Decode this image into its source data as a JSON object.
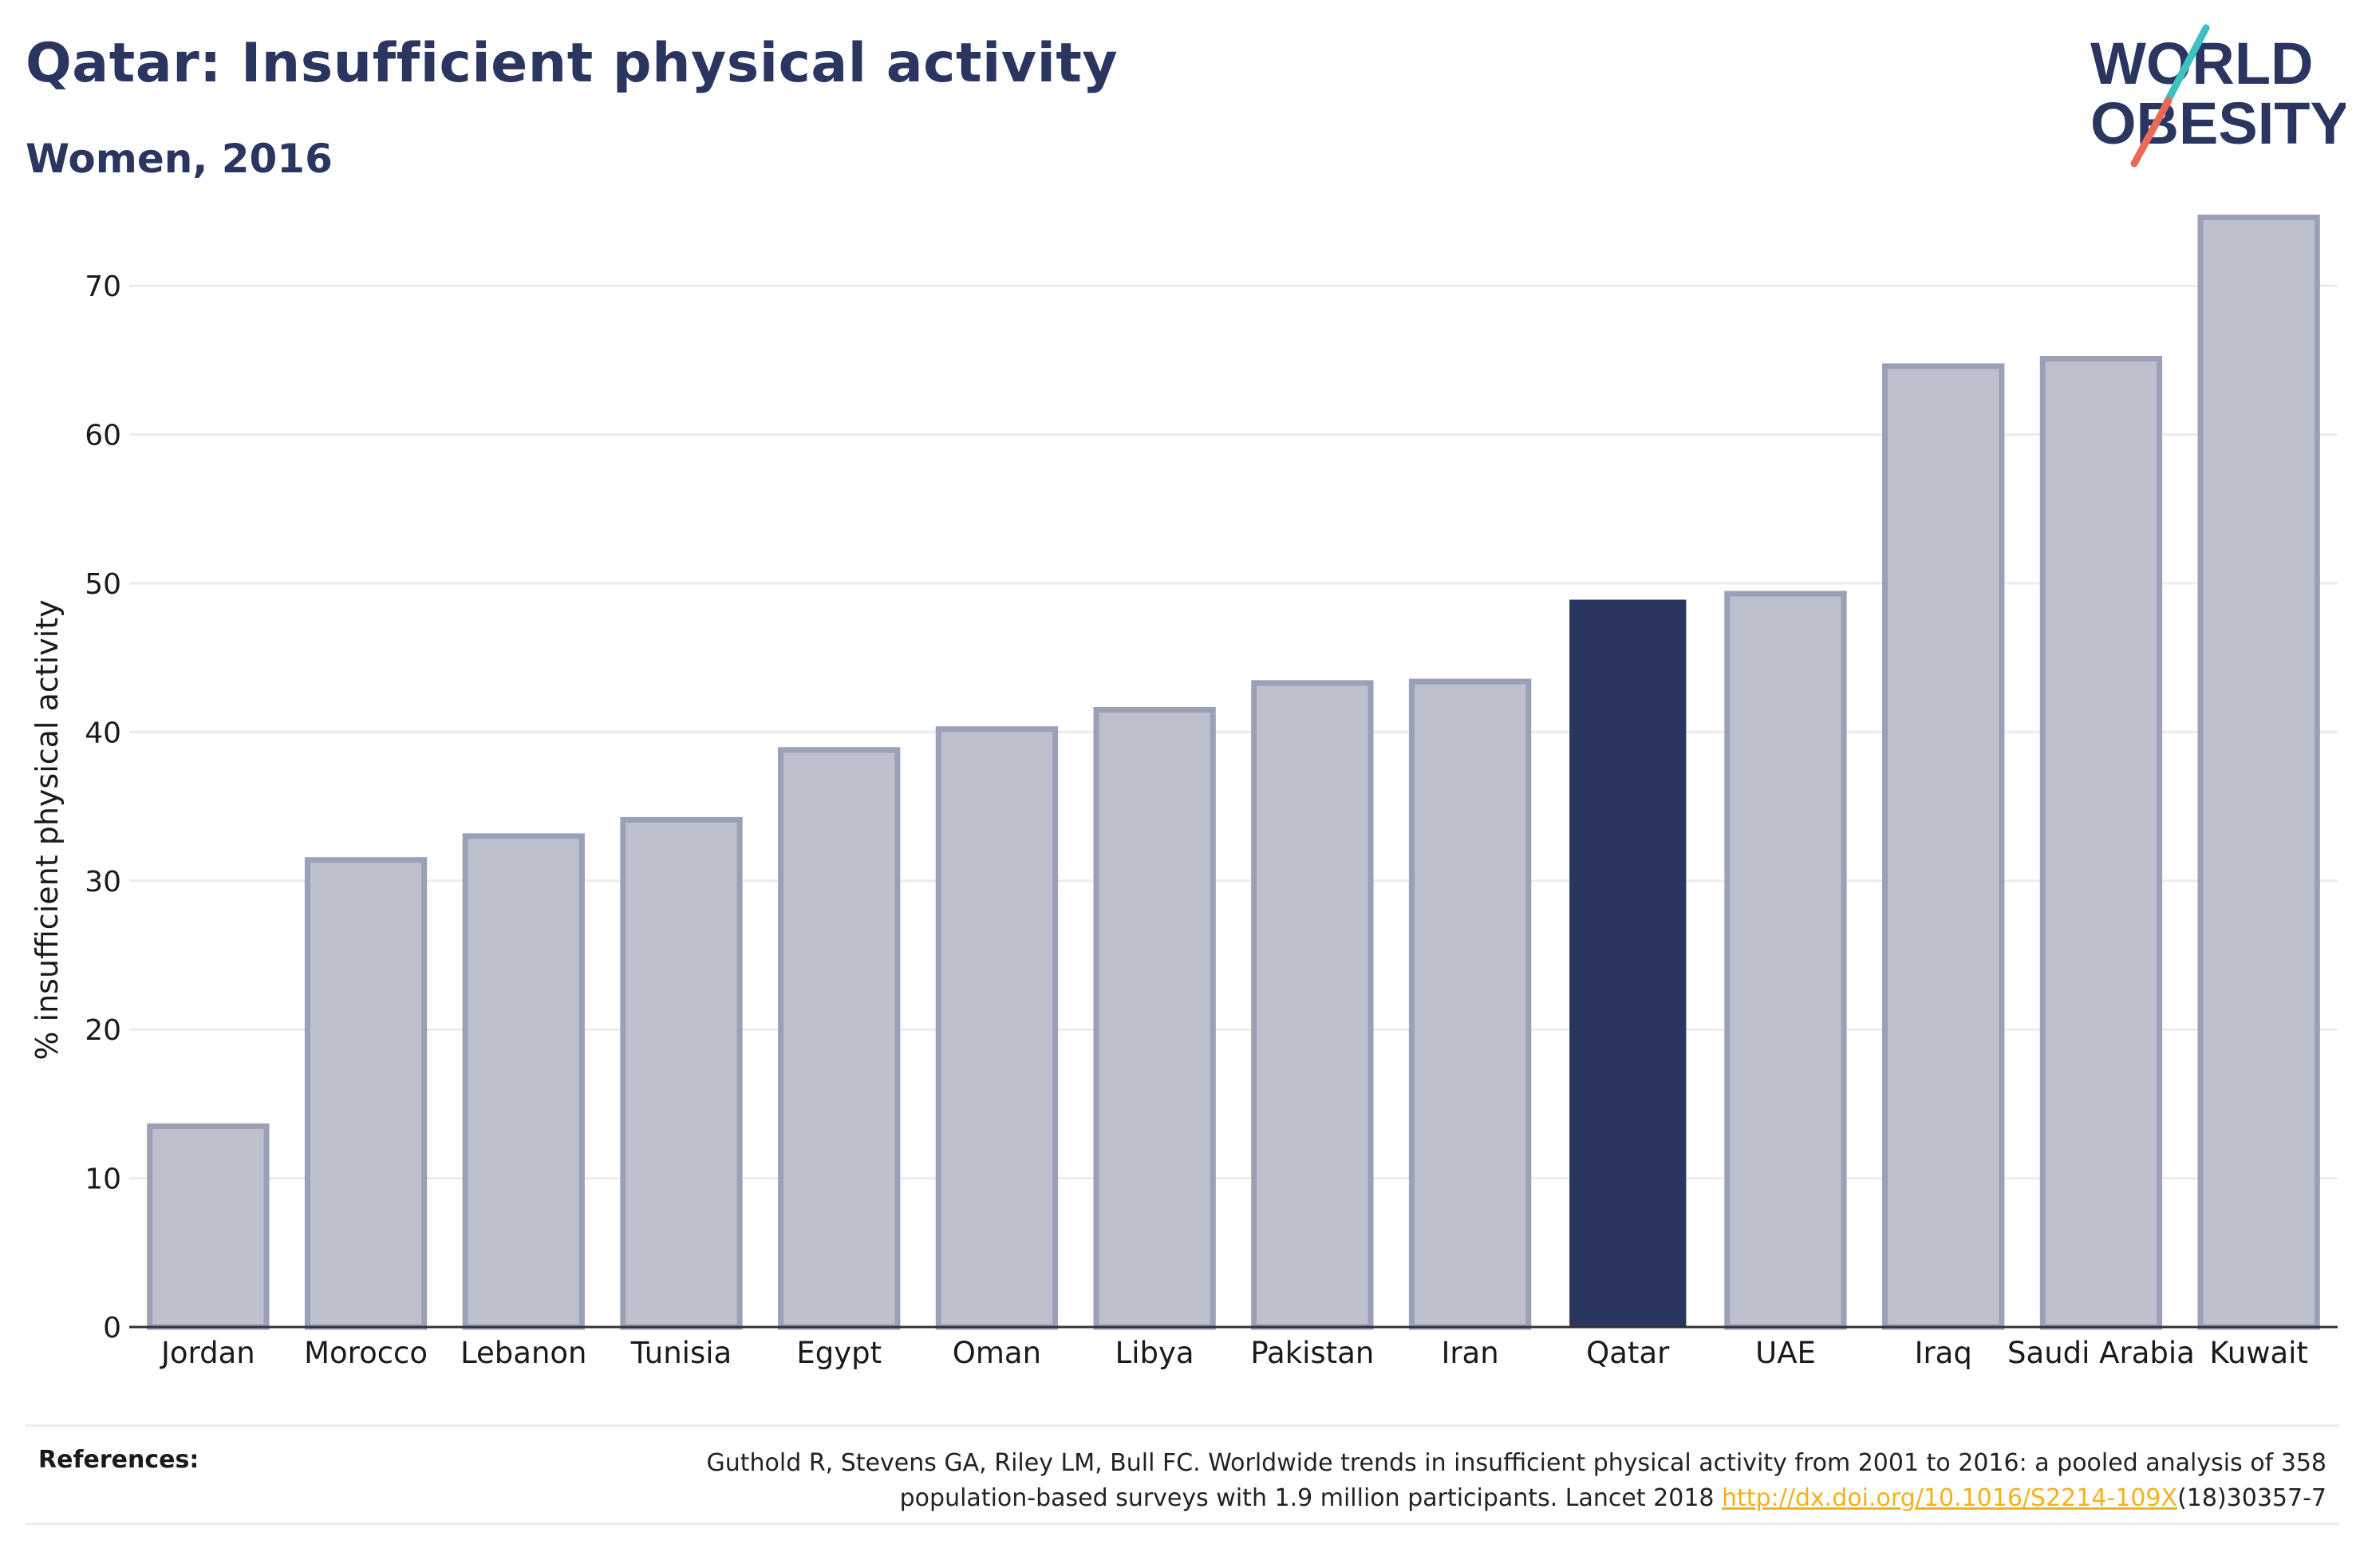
{
  "header": {
    "title": "Qatar: Insufficient physical activity",
    "subtitle": "Women, 2016"
  },
  "logo": {
    "line1": "WORLD",
    "line2": "OBESITY"
  },
  "references": {
    "label": "References:",
    "text_line1": "Guthold R, Stevens GA, Riley LM, Bull FC. Worldwide trends in insufficient physical activity from 2001 to 2016: a pooled analysis of 358",
    "text_line2_pre": "population-based surveys with 1.9 million participants. Lancet 2018 ",
    "link": "http://dx.doi.org/10.1016/S2214-109X",
    "text_line2_post": "(18)30357-7"
  },
  "colors": {
    "title": "#2a3560",
    "highlight_bar": "#2a3560",
    "other_bar_fill": "#bcc0cd",
    "other_bar_stroke": "#9aa0b8",
    "grid": "#ececec",
    "axis": "#333333",
    "link": "#f2b21b",
    "logo_teal": "#3ec1c1",
    "logo_coral": "#e86a57"
  },
  "chart_data": {
    "type": "bar",
    "title": "Qatar: Insufficient physical activity",
    "subtitle": "Women, 2016",
    "xlabel": "",
    "ylabel": "% insufficient physical activity",
    "categories": [
      "Jordan",
      "Morocco",
      "Lebanon",
      "Tunisia",
      "Egypt",
      "Oman",
      "Libya",
      "Pakistan",
      "Iran",
      "Qatar",
      "UAE",
      "Iraq",
      "Saudi Arabia",
      "Kuwait"
    ],
    "values": [
      13.5,
      31.4,
      33.0,
      34.1,
      38.8,
      40.2,
      41.5,
      43.3,
      43.4,
      48.9,
      49.3,
      64.6,
      65.1,
      74.6
    ],
    "highlight": "Qatar",
    "ylim": [
      0,
      75
    ],
    "yticks": [
      0,
      10,
      20,
      30,
      40,
      50,
      60,
      70
    ],
    "grid": true,
    "legend": "none"
  }
}
